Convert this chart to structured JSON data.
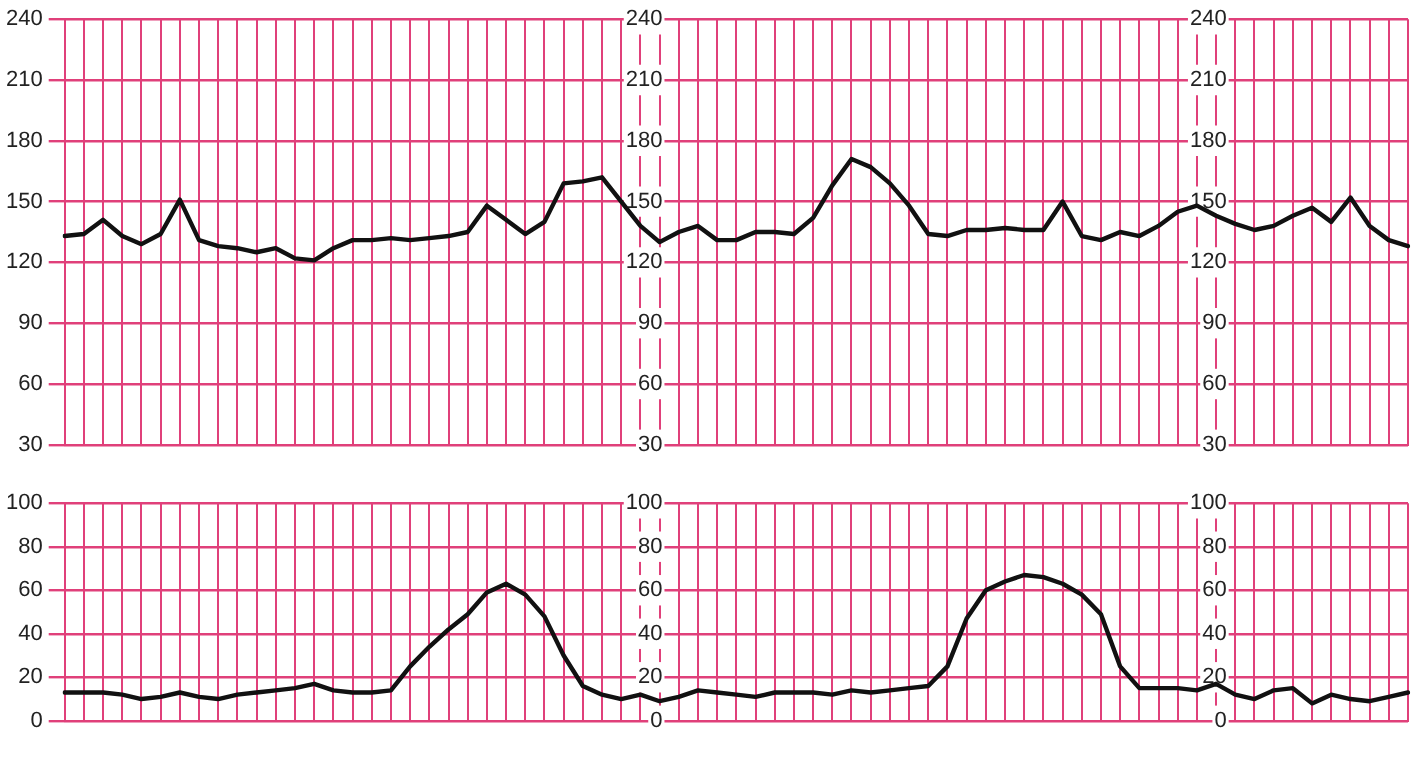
{
  "chart_data": [
    {
      "type": "line",
      "categories": [
        null,
        null,
        null,
        null,
        null,
        null,
        null,
        null,
        null,
        null,
        null,
        null,
        null,
        null,
        null,
        null,
        null,
        null,
        null,
        null,
        null,
        null,
        null,
        null,
        null,
        null,
        null,
        null,
        null,
        null,
        null,
        null,
        null,
        null,
        null,
        null,
        null,
        null,
        null,
        null,
        null,
        null,
        null,
        null,
        null,
        null,
        null,
        null,
        null,
        null,
        null,
        null,
        null,
        null,
        null,
        null,
        null,
        null,
        null,
        null,
        null,
        null,
        null,
        null,
        null,
        null,
        null,
        null,
        null,
        null,
        null
      ],
      "series": [
        {
          "color": "#111111",
          "values": [
            133,
            134,
            141,
            133,
            129,
            134,
            151,
            131,
            128,
            127,
            125,
            127,
            122,
            121,
            127,
            131,
            131,
            132,
            131,
            132,
            133,
            135,
            148,
            141,
            134,
            140,
            159,
            160,
            162,
            150,
            138,
            130,
            135,
            138,
            131,
            131,
            135,
            135,
            134,
            142,
            158,
            171,
            167,
            159,
            148,
            134,
            133,
            136,
            136,
            137,
            136,
            136,
            150,
            133,
            131,
            135,
            133,
            138,
            145,
            148,
            143,
            139,
            136,
            138,
            143,
            147,
            140,
            152,
            138,
            131,
            128
          ]
        }
      ],
      "ylim": [
        30,
        240
      ],
      "yticks": [
        30,
        60,
        90,
        120,
        150,
        180,
        210,
        240
      ],
      "y2lim": [
        30,
        240
      ],
      "y2ticks": [
        30,
        60,
        90,
        120,
        150,
        180,
        210,
        240
      ],
      "y3lim": [
        30,
        240
      ],
      "y3ticks": [
        30,
        60,
        90,
        120,
        150,
        180,
        210,
        240
      ],
      "grid": true,
      "legend": false,
      "tick_labels": "y",
      "marker": "none",
      "line_style": "solid"
    },
    {
      "type": "line",
      "categories": [
        null,
        null,
        null,
        null,
        null,
        null,
        null,
        null,
        null,
        null,
        null,
        null,
        null,
        null,
        null,
        null,
        null,
        null,
        null,
        null,
        null,
        null,
        null,
        null,
        null,
        null,
        null,
        null,
        null,
        null,
        null,
        null,
        null,
        null,
        null,
        null,
        null,
        null,
        null,
        null,
        null,
        null,
        null,
        null,
        null,
        null,
        null,
        null,
        null,
        null,
        null,
        null,
        null,
        null,
        null,
        null,
        null,
        null,
        null,
        null,
        null,
        null,
        null,
        null,
        null,
        null,
        null,
        null,
        null,
        null,
        null
      ],
      "series": [
        {
          "color": "#111111",
          "values": [
            13,
            13,
            13,
            12,
            10,
            11,
            13,
            11,
            10,
            12,
            13,
            14,
            15,
            17,
            14,
            13,
            13,
            14,
            25,
            34,
            42,
            49,
            59,
            63,
            58,
            48,
            30,
            16,
            12,
            10,
            12,
            9,
            11,
            14,
            13,
            12,
            11,
            13,
            13,
            13,
            12,
            14,
            13,
            14,
            15,
            16,
            25,
            47,
            60,
            64,
            67,
            66,
            63,
            58,
            49,
            25,
            15,
            15,
            15,
            14,
            17,
            12,
            10,
            14,
            15,
            8,
            12,
            10,
            9,
            11,
            13
          ]
        }
      ],
      "ylim": [
        0,
        100
      ],
      "yticks": [
        0,
        20,
        40,
        60,
        80,
        100
      ],
      "y2lim": [
        0,
        100
      ],
      "y2ticks": [
        0,
        20,
        40,
        60,
        80,
        100
      ],
      "y3lim": [
        0,
        100
      ],
      "y3ticks": [
        0,
        20,
        40,
        60,
        80,
        100
      ],
      "grid": true,
      "legend": false,
      "tick_labels": "y",
      "marker": "none",
      "line_style": "solid"
    }
  ]
}
